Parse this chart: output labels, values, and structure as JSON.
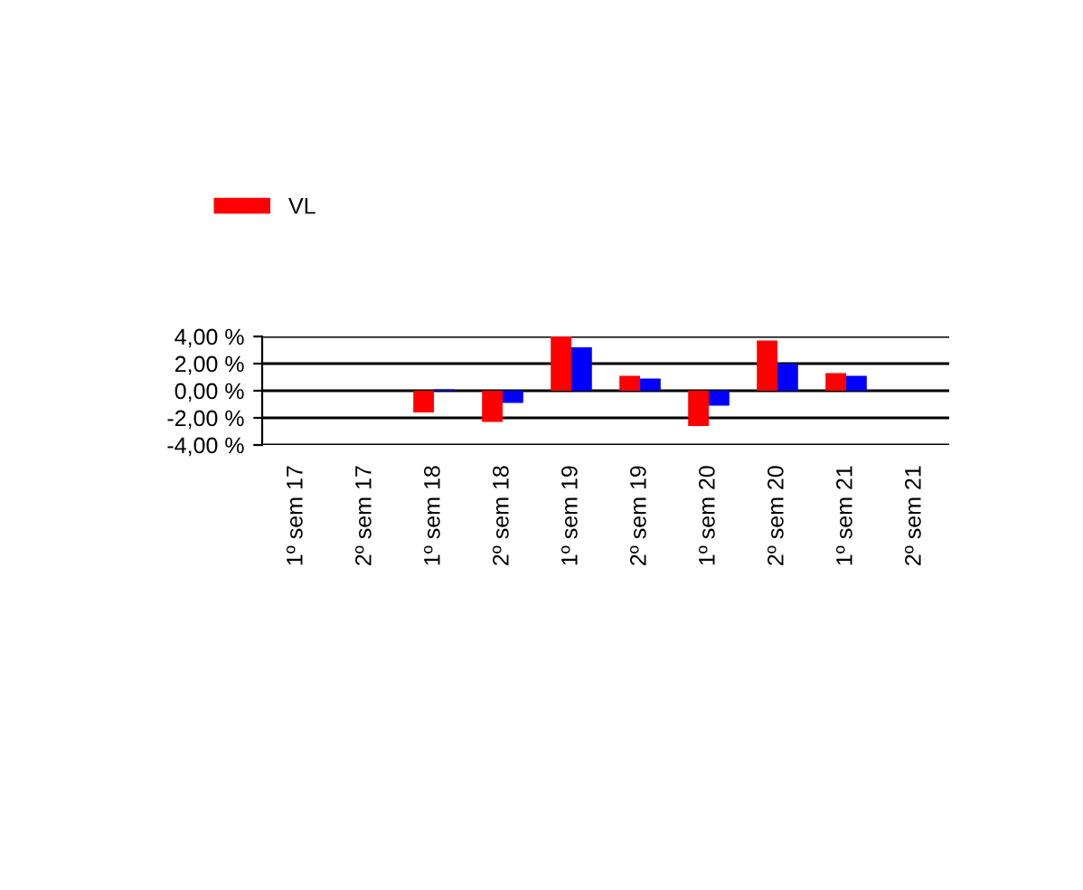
{
  "chart_data": {
    "type": "bar",
    "categories": [
      "1º sem 17",
      "2º sem 17",
      "1º sem 18",
      "2º sem 18",
      "1º sem 19",
      "2º sem 19",
      "1º sem 20",
      "2º sem 20",
      "1º sem 21",
      "2º sem 21"
    ],
    "series": [
      {
        "name": "VL",
        "color": "#ff0000",
        "values": [
          null,
          null,
          -1.6,
          -2.3,
          4.0,
          1.1,
          -2.6,
          3.7,
          1.3,
          null
        ]
      },
      {
        "color": "#0000ff",
        "values": [
          null,
          null,
          0.1,
          -0.9,
          3.2,
          0.9,
          -1.1,
          2.0,
          1.1,
          null
        ]
      }
    ],
    "ylim": [
      -4,
      4
    ],
    "yticks": [
      {
        "value": 4,
        "label": "4,00 %"
      },
      {
        "value": 2,
        "label": "2,00 %"
      },
      {
        "value": 0,
        "label": "0,00 %"
      },
      {
        "value": -2,
        "label": "-2,00 %"
      },
      {
        "value": -4,
        "label": "-4,00 %"
      }
    ],
    "grid": "y",
    "legend": "top"
  }
}
